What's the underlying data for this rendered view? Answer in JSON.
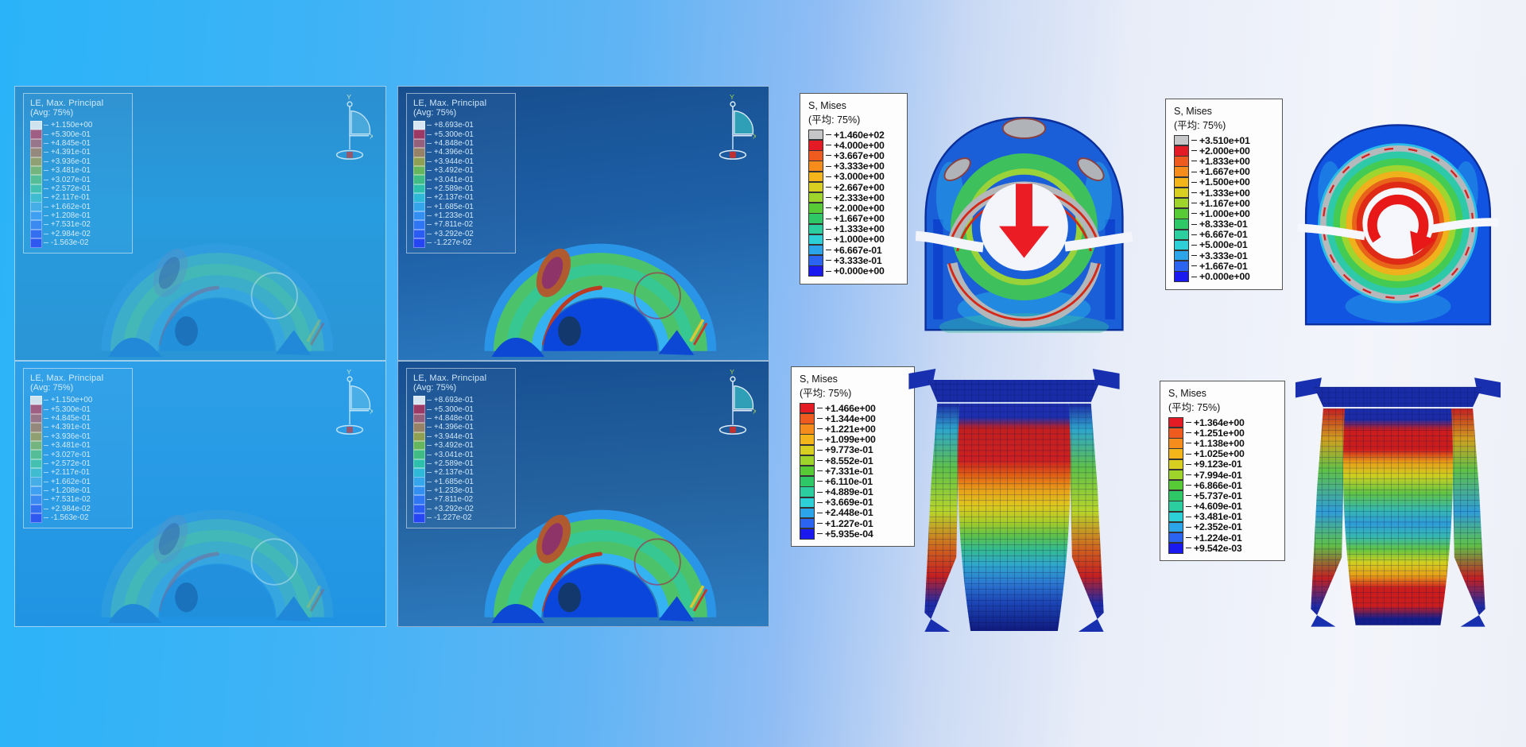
{
  "triad": {
    "y_label": "Y",
    "x_label": "X"
  },
  "colors": {
    "arrow_red": "#e6191f",
    "legend_overflow_gray": "#c4c6c8"
  },
  "le_panels": {
    "top_left": {
      "title": "LE, Max. Principal",
      "subtitle": "(Avg: 75%)",
      "values": [
        "+1.150e+00",
        "+5.300e-01",
        "+4.845e-01",
        "+4.391e-01",
        "+3.936e-01",
        "+3.481e-01",
        "+3.027e-01",
        "+2.572e-01",
        "+2.117e-01",
        "+1.662e-01",
        "+1.208e-01",
        "+7.531e-02",
        "+2.984e-02",
        "-1.563e-02"
      ],
      "colors": [
        "#cfe3ef",
        "#9f5f85",
        "#97758b",
        "#94897c",
        "#8fa172",
        "#74b47e",
        "#55bd97",
        "#43c0b2",
        "#40bcd0",
        "#45aee6",
        "#3f9ff0",
        "#3a8af2",
        "#346ff2",
        "#2e58f0"
      ]
    },
    "top_middle": {
      "title": "LE, Max. Principal",
      "subtitle": "(Avg: 75%)",
      "values": [
        "+8.693e-01",
        "+5.300e-01",
        "+4.848e-01",
        "+4.396e-01",
        "+3.944e-01",
        "+3.492e-01",
        "+3.041e-01",
        "+2.589e-01",
        "+2.137e-01",
        "+1.685e-01",
        "+1.233e-01",
        "+7.811e-02",
        "+3.292e-02",
        "-1.227e-02"
      ],
      "colors": [
        "#d6e6f2",
        "#9c3a66",
        "#95607c",
        "#968266",
        "#8fa052",
        "#66b65e",
        "#3fbd85",
        "#2dc0ac",
        "#2fb9d8",
        "#35a5ec",
        "#3390f2",
        "#2e76f4",
        "#2a5cf4",
        "#2546f2"
      ]
    },
    "bottom_left": {
      "title": "LE, Max. Principal",
      "subtitle": "(Avg: 75%)",
      "values": [
        "+1.150e+00",
        "+5.300e-01",
        "+4.845e-01",
        "+4.391e-01",
        "+3.936e-01",
        "+3.481e-01",
        "+3.027e-01",
        "+2.572e-01",
        "+2.117e-01",
        "+1.662e-01",
        "+1.208e-01",
        "+7.531e-02",
        "+2.984e-02",
        "-1.563e-02"
      ],
      "colors": [
        "#cfe3ef",
        "#9f5f85",
        "#97758b",
        "#94897c",
        "#8fa172",
        "#74b47e",
        "#55bd97",
        "#43c0b2",
        "#40bcd0",
        "#45aee6",
        "#3f9ff0",
        "#3a8af2",
        "#346ff2",
        "#2e58f0"
      ]
    },
    "bottom_middle": {
      "title": "LE, Max. Principal",
      "subtitle": "(Avg: 75%)",
      "values": [
        "+8.693e-01",
        "+5.300e-01",
        "+4.848e-01",
        "+4.396e-01",
        "+3.944e-01",
        "+3.492e-01",
        "+3.041e-01",
        "+2.589e-01",
        "+2.137e-01",
        "+1.685e-01",
        "+1.233e-01",
        "+7.811e-02",
        "+3.292e-02",
        "-1.227e-02"
      ],
      "colors": [
        "#d6e6f2",
        "#9c3a66",
        "#95607c",
        "#968266",
        "#8fa052",
        "#66b65e",
        "#3fbd85",
        "#2dc0ac",
        "#2fb9d8",
        "#35a5ec",
        "#3390f2",
        "#2e76f4",
        "#2a5cf4",
        "#2546f2"
      ]
    }
  },
  "mises_legends": {
    "top_middle": {
      "title": "S, Mises",
      "subtitle": "(平均: 75%)",
      "values": [
        "+1.460e+02",
        "+4.000e+00",
        "+3.667e+00",
        "+3.333e+00",
        "+3.000e+00",
        "+2.667e+00",
        "+2.333e+00",
        "+2.000e+00",
        "+1.667e+00",
        "+1.333e+00",
        "+1.000e+00",
        "+6.667e-01",
        "+3.333e-01",
        "+0.000e+00"
      ],
      "colors": [
        "#c4c6c8",
        "#e41a24",
        "#ef5a1e",
        "#f68c1c",
        "#f4b51a",
        "#d8cf20",
        "#9fd42a",
        "#57cb36",
        "#2fc866",
        "#2bce9e",
        "#2dd0d6",
        "#2ba4ea",
        "#2b64f0",
        "#1a1af0"
      ]
    },
    "top_right": {
      "title": "S, Mises",
      "subtitle": "(平均: 75%)",
      "values": [
        "+3.510e+01",
        "+2.000e+00",
        "+1.833e+00",
        "+1.667e+00",
        "+1.500e+00",
        "+1.333e+00",
        "+1.167e+00",
        "+1.000e+00",
        "+8.333e-01",
        "+6.667e-01",
        "+5.000e-01",
        "+3.333e-01",
        "+1.667e-01",
        "+0.000e+00"
      ],
      "colors": [
        "#c4c6c8",
        "#e41a24",
        "#ef5a1e",
        "#f68c1c",
        "#f4b51a",
        "#d8cf20",
        "#9fd42a",
        "#57cb36",
        "#2fc866",
        "#2bce9e",
        "#2dd0d6",
        "#2ba4ea",
        "#2b64f0",
        "#1a1af0"
      ]
    },
    "bottom_middle": {
      "title": "S, Mises",
      "subtitle": "(平均: 75%)",
      "values": [
        "+1.466e+00",
        "+1.344e+00",
        "+1.221e+00",
        "+1.099e+00",
        "+9.773e-01",
        "+8.552e-01",
        "+7.331e-01",
        "+6.110e-01",
        "+4.889e-01",
        "+3.669e-01",
        "+2.448e-01",
        "+1.227e-01",
        "+5.935e-04"
      ],
      "colors": [
        "#e41a24",
        "#ef5a1e",
        "#f68c1c",
        "#f4b51a",
        "#d8cf20",
        "#9fd42a",
        "#57cb36",
        "#2fc866",
        "#2bce9e",
        "#2dd0d6",
        "#2ba4ea",
        "#2b64f0",
        "#1a1af0"
      ]
    },
    "bottom_right": {
      "title": "S, Mises",
      "subtitle": "(平均: 75%)",
      "values": [
        "+1.364e+00",
        "+1.251e+00",
        "+1.138e+00",
        "+1.025e+00",
        "+9.123e-01",
        "+7.994e-01",
        "+6.866e-01",
        "+5.737e-01",
        "+4.609e-01",
        "+3.481e-01",
        "+2.352e-01",
        "+1.224e-01",
        "+9.542e-03"
      ],
      "colors": [
        "#e41a24",
        "#ef5a1e",
        "#f68c1c",
        "#f4b51a",
        "#d8cf20",
        "#9fd42a",
        "#57cb36",
        "#2fc866",
        "#2bce9e",
        "#2dd0d6",
        "#2ba4ea",
        "#2b64f0",
        "#1a1af0"
      ]
    }
  }
}
